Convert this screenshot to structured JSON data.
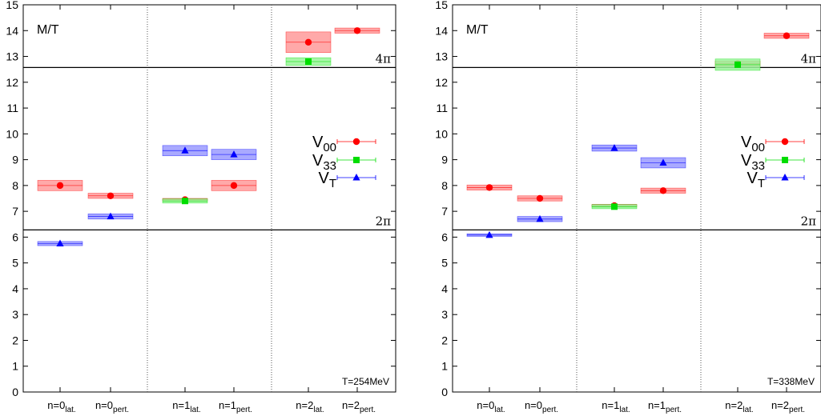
{
  "chart_data": [
    {
      "type": "scatter",
      "ylabel": "M/T",
      "ylim": [
        0,
        15
      ],
      "yticks": [
        0,
        1,
        2,
        3,
        4,
        5,
        6,
        7,
        8,
        9,
        10,
        11,
        12,
        13,
        14,
        15
      ],
      "categories": [
        {
          "main": "n=0",
          "sub": "lat."
        },
        {
          "main": "n=0",
          "sub": "pert."
        },
        {
          "main": "n=1",
          "sub": "lat."
        },
        {
          "main": "n=1",
          "sub": "pert."
        },
        {
          "main": "n=2",
          "sub": "lat."
        },
        {
          "main": "n=2",
          "sub": "pert."
        }
      ],
      "thresholds": [
        {
          "label": "2π",
          "value": 6.28
        },
        {
          "label": "4π",
          "value": 12.57
        }
      ],
      "annotation": "T=254MeV",
      "legend": "right",
      "series": [
        {
          "name": "V",
          "sub": "00",
          "color": "#ff0000",
          "fill": "#ff9a9a",
          "marker": "circle",
          "points": [
            {
              "cat": 0,
              "y": 8.0,
              "err": 0.2
            },
            {
              "cat": 1,
              "y": 7.6,
              "err": 0.1
            },
            {
              "cat": 2,
              "y": 7.45,
              "err": 0.05
            },
            {
              "cat": 3,
              "y": 8.0,
              "err": 0.2
            },
            {
              "cat": 4,
              "y": 13.55,
              "err": 0.4
            },
            {
              "cat": 5,
              "y": 14.0,
              "err": 0.1
            }
          ]
        },
        {
          "name": "V",
          "sub": "33",
          "color": "#00dd00",
          "fill": "#9af59a",
          "marker": "square",
          "points": [
            {
              "cat": 2,
              "y": 7.4,
              "err": 0.08
            },
            {
              "cat": 4,
              "y": 12.8,
              "err": 0.15
            }
          ]
        },
        {
          "name": "V",
          "sub": "T",
          "color": "#0000ff",
          "fill": "#9a9aff",
          "marker": "triangle",
          "points": [
            {
              "cat": 0,
              "y": 5.75,
              "err": 0.08
            },
            {
              "cat": 1,
              "y": 6.8,
              "err": 0.1
            },
            {
              "cat": 2,
              "y": 9.35,
              "err": 0.2
            },
            {
              "cat": 3,
              "y": 9.2,
              "err": 0.2
            }
          ]
        }
      ]
    },
    {
      "type": "scatter",
      "ylabel": "M/T",
      "ylim": [
        0,
        15
      ],
      "yticks": [
        0,
        1,
        2,
        3,
        4,
        5,
        6,
        7,
        8,
        9,
        10,
        11,
        12,
        13,
        14,
        15
      ],
      "categories": [
        {
          "main": "n=0",
          "sub": "lat."
        },
        {
          "main": "n=0",
          "sub": "pert."
        },
        {
          "main": "n=1",
          "sub": "lat."
        },
        {
          "main": "n=1",
          "sub": "pert."
        },
        {
          "main": "n=2",
          "sub": "lat."
        },
        {
          "main": "n=2",
          "sub": "pert."
        }
      ],
      "thresholds": [
        {
          "label": "2π",
          "value": 6.28
        },
        {
          "label": "4π",
          "value": 12.57
        }
      ],
      "annotation": "T=338MeV",
      "legend": "right",
      "series": [
        {
          "name": "V",
          "sub": "00",
          "color": "#ff0000",
          "fill": "#ff9a9a",
          "marker": "circle",
          "points": [
            {
              "cat": 0,
              "y": 7.92,
              "err": 0.1
            },
            {
              "cat": 1,
              "y": 7.5,
              "err": 0.1
            },
            {
              "cat": 2,
              "y": 7.22,
              "err": 0.05
            },
            {
              "cat": 3,
              "y": 7.8,
              "err": 0.1
            },
            {
              "cat": 4,
              "y": 12.72,
              "err": 0.1
            },
            {
              "cat": 5,
              "y": 13.8,
              "err": 0.1
            }
          ]
        },
        {
          "name": "V",
          "sub": "33",
          "color": "#00dd00",
          "fill": "#9af59a",
          "marker": "square",
          "points": [
            {
              "cat": 2,
              "y": 7.18,
              "err": 0.08
            },
            {
              "cat": 4,
              "y": 12.68,
              "err": 0.22
            }
          ]
        },
        {
          "name": "V",
          "sub": "T",
          "color": "#0000ff",
          "fill": "#9a9aff",
          "marker": "triangle",
          "points": [
            {
              "cat": 0,
              "y": 6.08,
              "err": 0.05
            },
            {
              "cat": 1,
              "y": 6.7,
              "err": 0.1
            },
            {
              "cat": 2,
              "y": 9.45,
              "err": 0.12
            },
            {
              "cat": 3,
              "y": 8.88,
              "err": 0.2
            }
          ]
        }
      ]
    }
  ]
}
